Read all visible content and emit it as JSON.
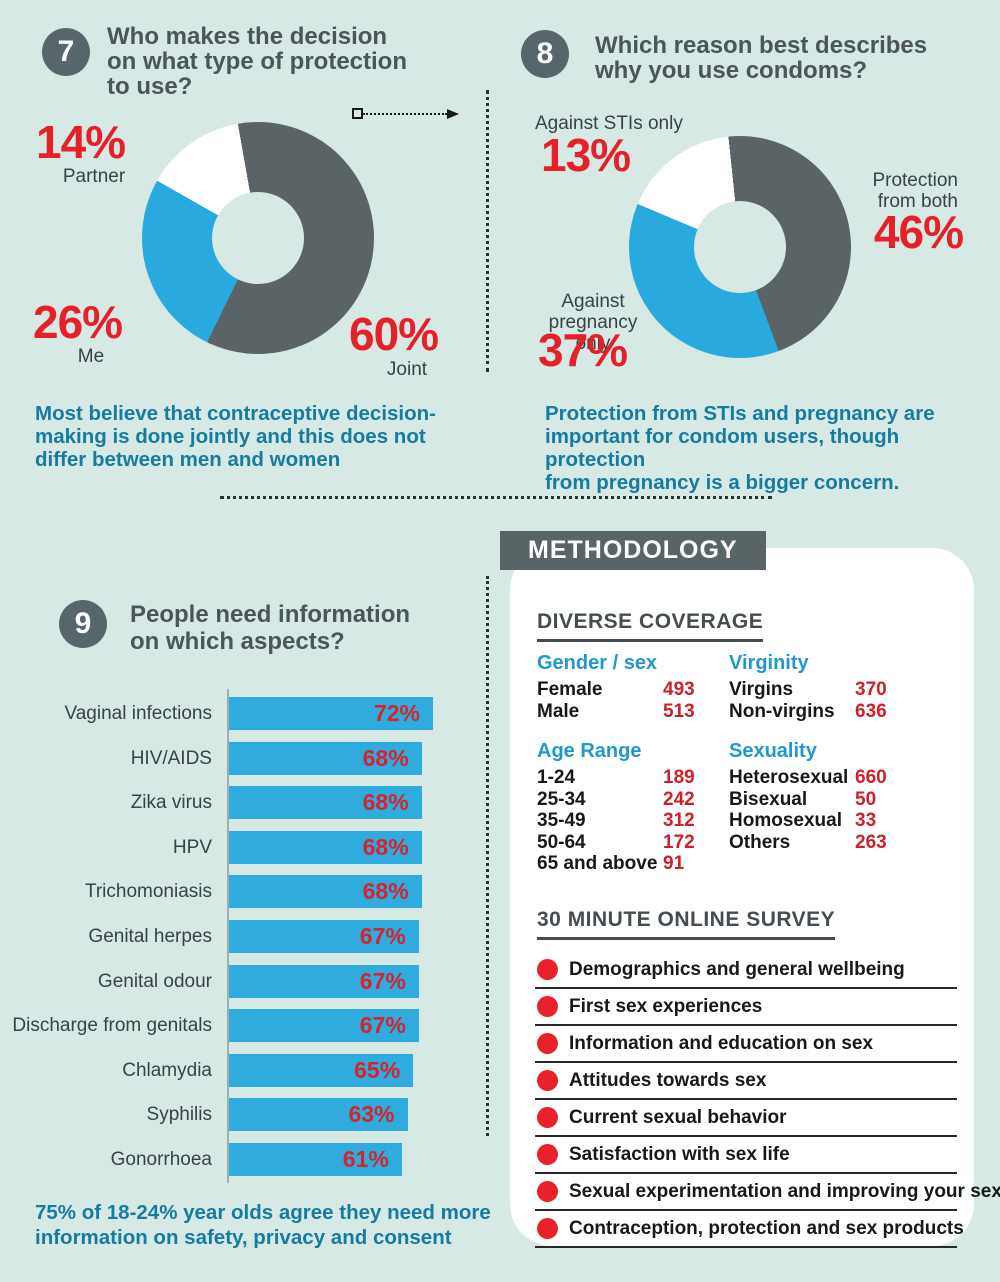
{
  "palette": {
    "background": "#d6e9e5",
    "slate": "#5a6467",
    "blue": "#29a9dd",
    "bar_blue": "#2fabdd",
    "red_big": "#e62028",
    "red_value": "#cf2028",
    "red_dot": "#e8212b",
    "teal_text": "#177a9f",
    "blue_heading": "#2098cf",
    "panel_white": "#ffffff",
    "title_gray": "#4c5558"
  },
  "q7": {
    "number": "7",
    "title": "Who makes the decision\non what type of protection\nto use?",
    "callouts": [
      {
        "pct": "14%",
        "label": "Partner"
      },
      {
        "pct": "26%",
        "label": "Me"
      },
      {
        "pct": "60%",
        "label": "Joint"
      }
    ],
    "note": "Most believe that contraceptive decision-\nmaking is done jointly and this does not\ndiffer between men and women"
  },
  "q8": {
    "number": "8",
    "title": "Which reason best describes\nwhy you use condoms?",
    "callouts": [
      {
        "pct": "13%",
        "label": "Against STIs only"
      },
      {
        "pct": "46%",
        "label": "Protection\nfrom both"
      },
      {
        "pct": "37%",
        "label": "Against\npregnancy only"
      }
    ],
    "note": "Protection from STIs and pregnancy are\nimportant for condom users, though protection\nfrom pregnancy is a bigger concern."
  },
  "q9": {
    "number": "9",
    "title": "People need information\non which aspects?",
    "note": "75% of 18-24% year olds agree they need more\ninformation on safety, privacy and consent"
  },
  "methodology": {
    "header": "METHODOLOGY",
    "coverage_title": "DIVERSE COVERAGE",
    "groups": [
      {
        "heading": "Gender / sex",
        "rows": [
          [
            "Female",
            "493"
          ],
          [
            "Male",
            "513"
          ]
        ]
      },
      {
        "heading": "Virginity",
        "rows": [
          [
            "Virgins",
            "370"
          ],
          [
            "Non-virgins",
            "636"
          ]
        ]
      },
      {
        "heading": "Age Range",
        "rows": [
          [
            "1-24",
            "189"
          ],
          [
            "25-34",
            "242"
          ],
          [
            "35-49",
            "312"
          ],
          [
            "50-64",
            "172"
          ],
          [
            "65 and above",
            "91"
          ]
        ]
      },
      {
        "heading": "Sexuality",
        "rows": [
          [
            "Heterosexual",
            "660"
          ],
          [
            "Bisexual",
            "50"
          ],
          [
            "Homosexual",
            "33"
          ],
          [
            "Others",
            "263"
          ]
        ]
      }
    ],
    "survey_title": "30 MINUTE ONLINE SURVEY",
    "survey_items": [
      "Demographics and general wellbeing",
      "First sex experiences",
      "Information and education on sex",
      "Attitudes towards sex",
      "Current sexual behavior",
      "Satisfaction with sex life",
      "Sexual experimentation and improving your sex life",
      "Contraception, protection and sex products"
    ]
  },
  "chart_data": [
    {
      "type": "pie",
      "donut": true,
      "start_deg": -10,
      "title": "Who makes the decision on what type of protection to use?",
      "slices": [
        {
          "label": "Joint",
          "value": 60,
          "color": "#5a6467"
        },
        {
          "label": "Me",
          "value": 26,
          "color": "#29a9dd"
        },
        {
          "label": "Partner",
          "value": 14,
          "color": "#ffffff"
        }
      ]
    },
    {
      "type": "pie",
      "donut": true,
      "start_deg": -6,
      "title": "Which reason best describes why you use condoms?",
      "slices": [
        {
          "label": "Protection from both",
          "value": 46,
          "color": "#5a6467"
        },
        {
          "label": "Against pregnancy only",
          "value": 37,
          "color": "#29a9dd"
        },
        {
          "label": "Against STIs only",
          "value": 13,
          "color": "#ffffff"
        }
      ]
    },
    {
      "type": "bar",
      "orientation": "horizontal",
      "unit": "%",
      "xlim": [
        0,
        72
      ],
      "title": "People need information on which aspects?",
      "bar_color": "#2fabdd",
      "value_label_color": "#d6232e",
      "categories": [
        "Vaginal infections",
        "HIV/AIDS",
        "Zika virus",
        "HPV",
        "Trichomoniasis",
        "Genital herpes",
        "Genital odour",
        "Discharge from genitals",
        "Chlamydia",
        "Syphilis",
        "Gonorrhoea"
      ],
      "values": [
        72,
        68,
        68,
        68,
        68,
        67,
        67,
        67,
        65,
        63,
        61
      ]
    }
  ]
}
